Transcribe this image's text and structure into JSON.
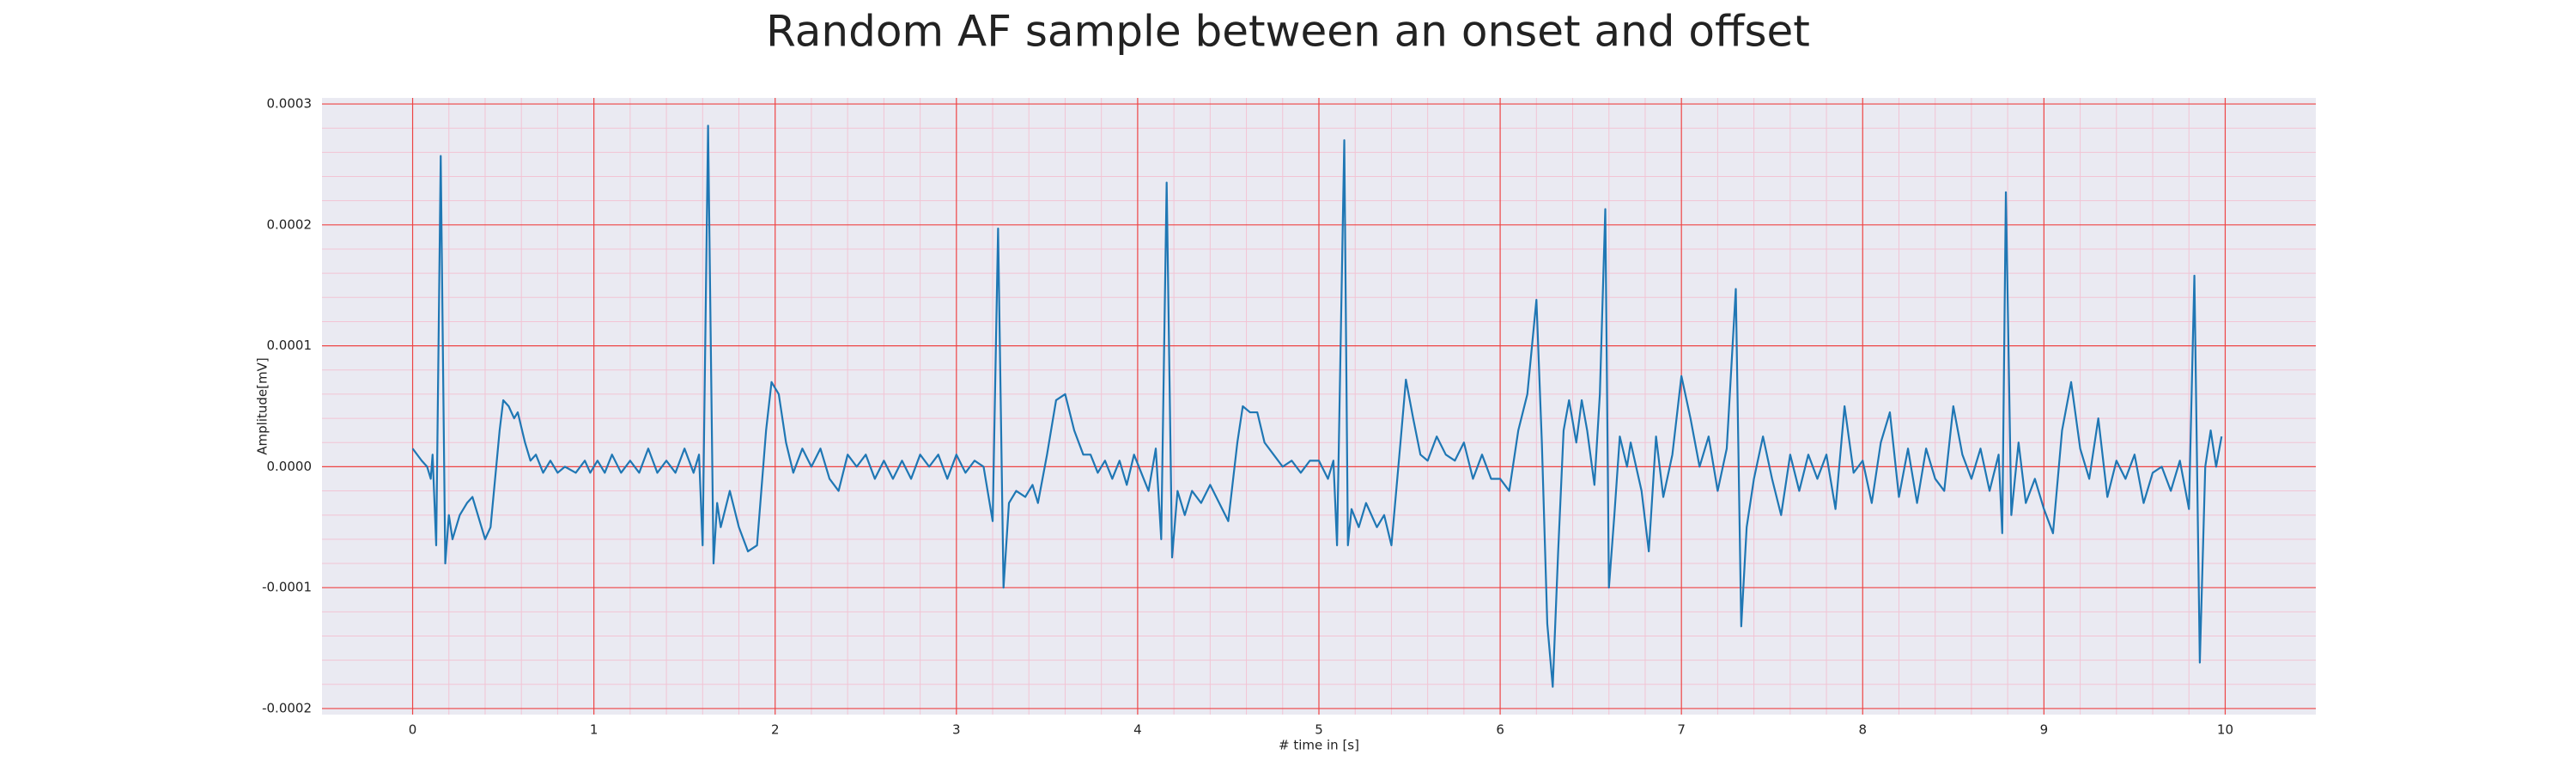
{
  "chart_data": {
    "type": "line",
    "title": "Random AF sample between an onset and offset",
    "x_label": "# time in [s]",
    "y_label": "Amplitude[mV]",
    "xlim": [
      -0.5,
      10.5
    ],
    "ylim": [
      -0.000205,
      0.000305
    ],
    "xticks": [
      0,
      1,
      2,
      3,
      4,
      5,
      6,
      7,
      8,
      9,
      10
    ],
    "yticks": [
      {
        "value": -0.0002,
        "label": "-0.0002"
      },
      {
        "value": -0.0001,
        "label": "-0.0001"
      },
      {
        "value": 0,
        "label": "0.0000"
      },
      {
        "value": 0.0001,
        "label": "0.0001"
      },
      {
        "value": 0.0002,
        "label": "0.0002"
      },
      {
        "value": 0.0003,
        "label": "0.0003"
      }
    ],
    "grid": true,
    "minor_grid": true,
    "grid_color": "#ee4444",
    "minor_grid_color": "#f2c4d4",
    "background": "#eaeaf2",
    "series": [
      {
        "color": "#1f77b4",
        "x": [
          0,
          0.05,
          0.08,
          0.1,
          0.11,
          0.13,
          0.155,
          0.18,
          0.2,
          0.22,
          0.26,
          0.3,
          0.33,
          0.36,
          0.4,
          0.43,
          0.48,
          0.5,
          0.53,
          0.56,
          0.58,
          0.62,
          0.65,
          0.68,
          0.72,
          0.76,
          0.8,
          0.84,
          0.9,
          0.95,
          0.98,
          1.02,
          1.06,
          1.1,
          1.15,
          1.2,
          1.25,
          1.3,
          1.35,
          1.4,
          1.45,
          1.5,
          1.55,
          1.58,
          1.6,
          1.63,
          1.66,
          1.68,
          1.7,
          1.75,
          1.8,
          1.85,
          1.9,
          1.95,
          1.98,
          2.02,
          2.06,
          2.1,
          2.15,
          2.2,
          2.25,
          2.3,
          2.35,
          2.4,
          2.45,
          2.5,
          2.55,
          2.6,
          2.65,
          2.7,
          2.75,
          2.8,
          2.85,
          2.9,
          2.95,
          3.0,
          3.05,
          3.1,
          3.15,
          3.2,
          3.23,
          3.26,
          3.29,
          3.33,
          3.38,
          3.42,
          3.45,
          3.5,
          3.55,
          3.6,
          3.65,
          3.7,
          3.74,
          3.78,
          3.82,
          3.86,
          3.9,
          3.94,
          3.98,
          4.02,
          4.06,
          4.1,
          4.13,
          4.16,
          4.19,
          4.22,
          4.26,
          4.3,
          4.35,
          4.4,
          4.45,
          4.5,
          4.55,
          4.58,
          4.62,
          4.66,
          4.7,
          4.75,
          4.8,
          4.85,
          4.9,
          4.95,
          5.0,
          5.05,
          5.08,
          5.1,
          5.14,
          5.16,
          5.18,
          5.22,
          5.26,
          5.32,
          5.36,
          5.4,
          5.45,
          5.48,
          5.52,
          5.56,
          5.6,
          5.65,
          5.7,
          5.75,
          5.8,
          5.85,
          5.9,
          5.95,
          6.0,
          6.05,
          6.1,
          6.15,
          6.2,
          6.23,
          6.26,
          6.29,
          6.32,
          6.35,
          6.38,
          6.42,
          6.45,
          6.48,
          6.52,
          6.55,
          6.58,
          6.6,
          6.63,
          6.66,
          6.7,
          6.72,
          6.78,
          6.82,
          6.86,
          6.9,
          6.95,
          7.0,
          7.05,
          7.1,
          7.15,
          7.2,
          7.25,
          7.3,
          7.33,
          7.36,
          7.4,
          7.45,
          7.5,
          7.55,
          7.6,
          7.65,
          7.7,
          7.75,
          7.8,
          7.85,
          7.9,
          7.95,
          8.0,
          8.05,
          8.1,
          8.15,
          8.2,
          8.25,
          8.3,
          8.35,
          8.4,
          8.45,
          8.5,
          8.55,
          8.6,
          8.65,
          8.7,
          8.75,
          8.77,
          8.79,
          8.82,
          8.86,
          8.9,
          8.95,
          9.0,
          9.05,
          9.1,
          9.15,
          9.2,
          9.25,
          9.3,
          9.35,
          9.4,
          9.45,
          9.5,
          9.55,
          9.6,
          9.65,
          9.7,
          9.75,
          9.8,
          9.83,
          9.86,
          9.89,
          9.92,
          9.95,
          9.98
        ],
        "values": [
          1.5e-05,
          5e-06,
          0,
          -1e-05,
          1e-05,
          -6.5e-05,
          0.000257,
          -8e-05,
          -4e-05,
          -6e-05,
          -4e-05,
          -3e-05,
          -2.5e-05,
          -4e-05,
          -6e-05,
          -5e-05,
          3e-05,
          5.5e-05,
          5e-05,
          4e-05,
          4.5e-05,
          2e-05,
          5e-06,
          1e-05,
          -5e-06,
          5e-06,
          -5e-06,
          0,
          -5e-06,
          5e-06,
          -5e-06,
          5e-06,
          -5e-06,
          1e-05,
          -5e-06,
          5e-06,
          -5e-06,
          1.5e-05,
          -5e-06,
          5e-06,
          -5e-06,
          1.5e-05,
          -5e-06,
          1e-05,
          -6.5e-05,
          0.000282,
          -8e-05,
          -3e-05,
          -5e-05,
          -2e-05,
          -5e-05,
          -7e-05,
          -6.5e-05,
          3e-05,
          7e-05,
          6e-05,
          2e-05,
          -5e-06,
          1.5e-05,
          0,
          1.5e-05,
          -1e-05,
          -2e-05,
          1e-05,
          0,
          1e-05,
          -1e-05,
          5e-06,
          -1e-05,
          5e-06,
          -1e-05,
          1e-05,
          0,
          1e-05,
          -1e-05,
          1e-05,
          -5e-06,
          5e-06,
          0,
          -4.5e-05,
          0.000197,
          -0.0001,
          -3e-05,
          -2e-05,
          -2.5e-05,
          -1.5e-05,
          -3e-05,
          1e-05,
          5.5e-05,
          6e-05,
          3e-05,
          1e-05,
          1e-05,
          -5e-06,
          5e-06,
          -1e-05,
          5e-06,
          -1.5e-05,
          1e-05,
          -5e-06,
          -2e-05,
          1.5e-05,
          -6e-05,
          0.000235,
          -7.5e-05,
          -2e-05,
          -4e-05,
          -2e-05,
          -3e-05,
          -1.5e-05,
          -3e-05,
          -4.5e-05,
          2e-05,
          5e-05,
          4.5e-05,
          4.5e-05,
          2e-05,
          1e-05,
          0,
          5e-06,
          -5e-06,
          5e-06,
          5e-06,
          -1e-05,
          5e-06,
          -6.5e-05,
          0.00027,
          -6.5e-05,
          -3.5e-05,
          -5e-05,
          -3e-05,
          -5e-05,
          -4e-05,
          -6.5e-05,
          2e-05,
          7.2e-05,
          4e-05,
          1e-05,
          5e-06,
          2.5e-05,
          1e-05,
          5e-06,
          2e-05,
          -1e-05,
          1e-05,
          -1e-05,
          -1e-05,
          -2e-05,
          3e-05,
          6e-05,
          0.000138,
          2e-05,
          -0.00013,
          -0.000182,
          -7e-05,
          3e-05,
          5.5e-05,
          2e-05,
          5.5e-05,
          3e-05,
          -1.5e-05,
          6e-05,
          0.000213,
          -0.0001,
          -4e-05,
          2.5e-05,
          0,
          2e-05,
          -2e-05,
          -7e-05,
          2.5e-05,
          -2.5e-05,
          1e-05,
          7.5e-05,
          4e-05,
          0,
          2.5e-05,
          -2e-05,
          1.5e-05,
          0.000147,
          -0.000132,
          -5e-05,
          -1e-05,
          2.5e-05,
          -1e-05,
          -4e-05,
          1e-05,
          -2e-05,
          1e-05,
          -1e-05,
          1e-05,
          -3.5e-05,
          5e-05,
          -5e-06,
          5e-06,
          -3e-05,
          2e-05,
          4.5e-05,
          -2.5e-05,
          1.5e-05,
          -3e-05,
          1.5e-05,
          -1e-05,
          -2e-05,
          5e-05,
          1e-05,
          -1e-05,
          1.5e-05,
          -2e-05,
          1e-05,
          -5.5e-05,
          0.000227,
          -4e-05,
          2e-05,
          -3e-05,
          -1e-05,
          -3.5e-05,
          -5.5e-05,
          3e-05,
          7e-05,
          1.5e-05,
          -1e-05,
          4e-05,
          -2.5e-05,
          5e-06,
          -1e-05,
          1e-05,
          -3e-05,
          -5e-06,
          0,
          -2e-05,
          5e-06,
          -3.5e-05,
          0.000158,
          -0.000162,
          0,
          3e-05,
          0,
          2.5e-05
        ]
      }
    ]
  }
}
